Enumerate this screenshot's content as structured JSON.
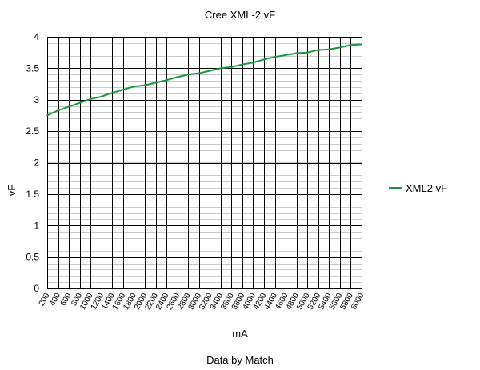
{
  "chart_data": {
    "type": "line",
    "title": "Cree XML-2 vF",
    "xlabel": "mA",
    "ylabel": "vF",
    "footer": "Data by Match",
    "x": [
      200,
      400,
      600,
      800,
      1000,
      1200,
      1400,
      1600,
      1800,
      2000,
      2200,
      2400,
      2600,
      2800,
      3000,
      3200,
      3400,
      3600,
      3800,
      4000,
      4200,
      4400,
      4600,
      4800,
      5000,
      5200,
      5400,
      5600,
      5800,
      6000
    ],
    "ylim": [
      0,
      4
    ],
    "yticks": [
      0,
      0.5,
      1,
      1.5,
      2,
      2.5,
      3,
      3.5,
      4
    ],
    "ytick_labels": [
      "0",
      "0.5",
      "1",
      "1.5",
      "2",
      "2.5",
      "3",
      "3.5",
      "4"
    ],
    "grid": true,
    "legend_position": "right",
    "series": [
      {
        "name": "XML2 vF",
        "color": "#1a9641",
        "values": [
          2.75,
          2.83,
          2.89,
          2.95,
          3.01,
          3.05,
          3.11,
          3.16,
          3.21,
          3.23,
          3.27,
          3.31,
          3.36,
          3.4,
          3.42,
          3.46,
          3.5,
          3.52,
          3.56,
          3.59,
          3.64,
          3.68,
          3.71,
          3.74,
          3.75,
          3.79,
          3.8,
          3.83,
          3.87,
          3.88
        ]
      }
    ]
  }
}
